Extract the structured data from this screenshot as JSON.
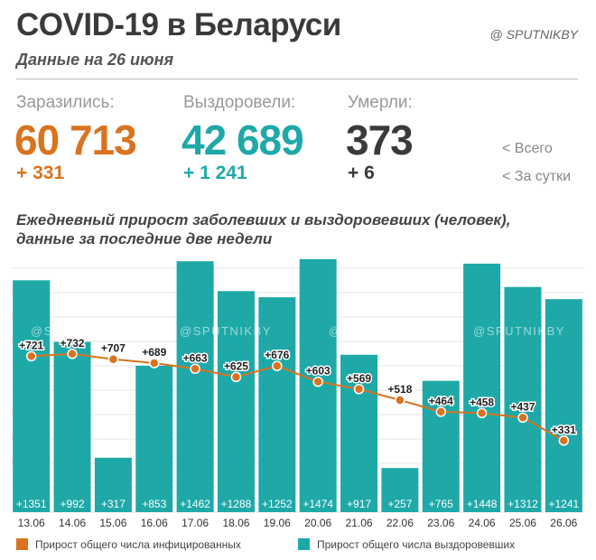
{
  "header": {
    "title": "COVID-19 в Беларуси",
    "brand": "@ SPUTNIKBY",
    "subtitle": "Данные на 26 июня"
  },
  "stats": {
    "infected": {
      "label": "Заразились:",
      "value": "60 713",
      "delta": "+ 331"
    },
    "recovered": {
      "label": "Выздоровели:",
      "value": "42 689",
      "delta": "+ 1 241"
    },
    "died": {
      "label": "Умерли:",
      "value": "373",
      "delta": "+ 6"
    },
    "legend_total": "<  Всего",
    "legend_daily": "<  За сутки"
  },
  "chart_title": "Ежедневный прирост заболевших и выздоровевших (человек), данные за последние две недели",
  "watermark": "@SPUTNIKBY",
  "colors": {
    "infected": "#d9731f",
    "recovered": "#1ea9a8",
    "deaths": "#3a3a3a",
    "title": "#3a3a3a"
  },
  "chart_data": {
    "type": "bar",
    "categories": [
      "13.06",
      "14.06",
      "15.06",
      "16.06",
      "17.06",
      "18.06",
      "19.06",
      "20.06",
      "21.06",
      "22.06",
      "23.06",
      "24.06",
      "25.06",
      "26.06"
    ],
    "series": [
      {
        "name": "Прирост общего числа выздоровевших",
        "type": "bar",
        "values": [
          1351,
          992,
          317,
          853,
          1462,
          1288,
          1252,
          1474,
          917,
          257,
          765,
          1448,
          1312,
          1241
        ],
        "labels": [
          "+1351",
          "+992",
          "+317",
          "+853",
          "+1462",
          "+1288",
          "+1252",
          "+1474",
          "+917",
          "+257",
          "+765",
          "+1448",
          "+1312",
          "+1241"
        ]
      },
      {
        "name": "Прирост общего числа инфицированных",
        "type": "line",
        "values": [
          721,
          732,
          707,
          689,
          663,
          625,
          676,
          603,
          569,
          518,
          464,
          458,
          437,
          331
        ],
        "labels": [
          "+721",
          "+732",
          "+707",
          "+689",
          "+663",
          "+625",
          "+676",
          "+603",
          "+569",
          "+518",
          "+464",
          "+458",
          "+437",
          "+331"
        ]
      }
    ],
    "bar_ylim": [
      0,
      1500
    ],
    "line_ylim": [
      0,
      1000
    ],
    "grid": true,
    "legend_position": "bottom"
  },
  "legend": {
    "infected": "Прирост общего числа инфицированных",
    "recovered": "Прирост общего числа выздоровевших"
  }
}
